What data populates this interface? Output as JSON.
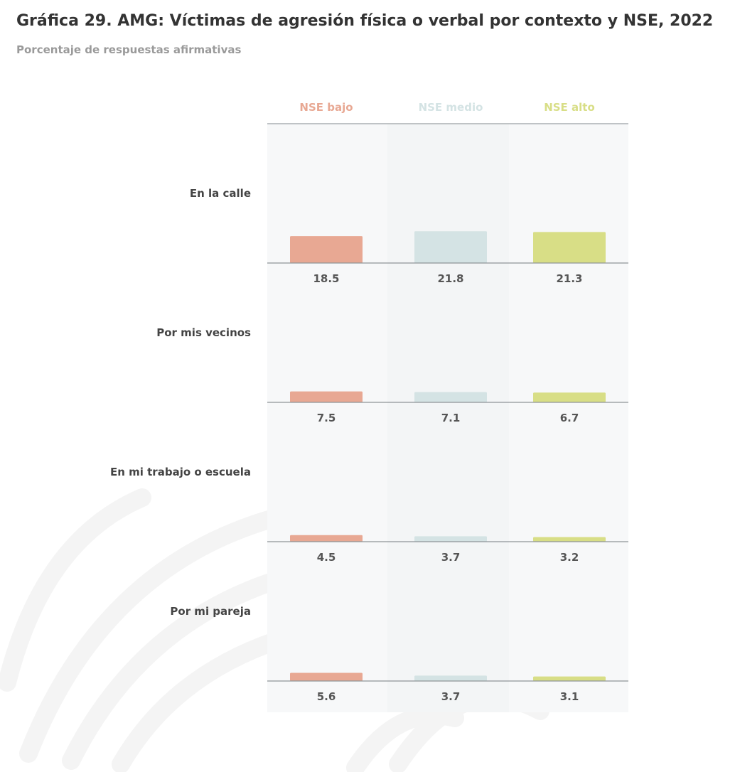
{
  "title": "Gráfica 29. AMG: Víctimas de agresión física o verbal por contexto y NSE, 2022",
  "subtitle": "Porcentaje de respuestas afirmativas",
  "colors": {
    "NSE bajo": "#e8a893",
    "NSE medio": "#d4e3e4",
    "NSE alto": "#d8de86"
  },
  "chart_data": {
    "type": "bar",
    "series_labels": [
      "NSE bajo",
      "NSE medio",
      "NSE alto"
    ],
    "categories": [
      "En la calle",
      "Por mis vecinos",
      "En mi trabajo o escuela",
      "Por mi pareja"
    ],
    "series": [
      {
        "name": "NSE bajo",
        "values": [
          18.5,
          7.5,
          4.5,
          5.6
        ]
      },
      {
        "name": "NSE medio",
        "values": [
          21.8,
          7.1,
          3.7,
          3.7
        ]
      },
      {
        "name": "NSE alto",
        "values": [
          21.3,
          6.7,
          3.2,
          3.1
        ]
      }
    ]
  }
}
